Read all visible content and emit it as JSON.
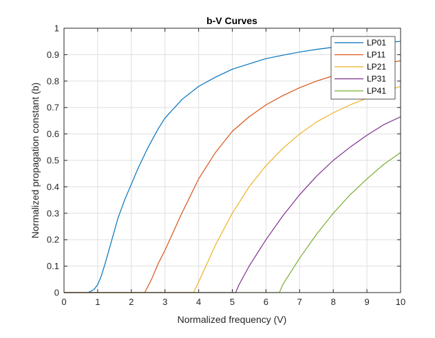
{
  "chart_data": {
    "type": "line",
    "title": "b-V Curves",
    "xlabel": "Normalized frequency (V)",
    "ylabel": "Normalized propagation constant (b)",
    "xlim": [
      0,
      10
    ],
    "ylim": [
      0,
      1
    ],
    "xticks": [
      "0",
      "1",
      "2",
      "3",
      "4",
      "5",
      "6",
      "7",
      "8",
      "9",
      "10"
    ],
    "yticks": [
      "0",
      "0.1",
      "0.2",
      "0.3",
      "0.4",
      "0.5",
      "0.6",
      "0.7",
      "0.8",
      "0.9",
      "1"
    ],
    "grid": true,
    "legend_position": "top-right",
    "series": [
      {
        "name": "LP01",
        "color": "#0072BD",
        "x": [
          0,
          0.7,
          0.8,
          0.9,
          1.0,
          1.1,
          1.2,
          1.4,
          1.6,
          1.8,
          2.0,
          2.2,
          2.5,
          2.8,
          3.0,
          3.5,
          4.0,
          4.5,
          5.0,
          5.5,
          6.0,
          6.5,
          7.0,
          7.5,
          8.0,
          8.5,
          9.0,
          9.5,
          10.0
        ],
        "y": [
          0,
          0,
          0.005,
          0.013,
          0.03,
          0.06,
          0.1,
          0.19,
          0.28,
          0.35,
          0.41,
          0.47,
          0.55,
          0.62,
          0.66,
          0.73,
          0.78,
          0.815,
          0.845,
          0.865,
          0.885,
          0.898,
          0.91,
          0.92,
          0.928,
          0.935,
          0.941,
          0.946,
          0.95
        ]
      },
      {
        "name": "LP11",
        "color": "#D95319",
        "x": [
          0,
          2.4,
          2.6,
          2.8,
          3.0,
          3.5,
          4.0,
          4.5,
          5.0,
          5.5,
          6.0,
          6.5,
          7.0,
          7.5,
          8.0,
          8.5,
          9.0,
          9.5,
          10.0
        ],
        "y": [
          0,
          0,
          0.05,
          0.11,
          0.16,
          0.3,
          0.43,
          0.53,
          0.61,
          0.665,
          0.71,
          0.745,
          0.775,
          0.8,
          0.82,
          0.838,
          0.853,
          0.866,
          0.877
        ]
      },
      {
        "name": "LP21",
        "color": "#EDB120",
        "x": [
          0,
          3.85,
          4.0,
          4.5,
          5.0,
          5.5,
          6.0,
          6.5,
          7.0,
          7.5,
          8.0,
          8.5,
          9.0,
          9.5,
          10.0
        ],
        "y": [
          0,
          0,
          0.04,
          0.18,
          0.3,
          0.4,
          0.48,
          0.545,
          0.6,
          0.645,
          0.68,
          0.71,
          0.735,
          0.76,
          0.78
        ]
      },
      {
        "name": "LP31",
        "color": "#7E2F8E",
        "x": [
          0,
          5.1,
          5.2,
          5.5,
          6.0,
          6.5,
          7.0,
          7.5,
          8.0,
          8.5,
          9.0,
          9.5,
          10.0
        ],
        "y": [
          0,
          0,
          0.03,
          0.1,
          0.2,
          0.29,
          0.37,
          0.44,
          0.5,
          0.55,
          0.595,
          0.635,
          0.665
        ]
      },
      {
        "name": "LP41",
        "color": "#77AC30",
        "x": [
          0,
          6.4,
          6.5,
          7.0,
          7.5,
          8.0,
          8.5,
          9.0,
          9.5,
          10.0
        ],
        "y": [
          0,
          0,
          0.03,
          0.13,
          0.22,
          0.3,
          0.37,
          0.43,
          0.485,
          0.53
        ]
      }
    ]
  }
}
